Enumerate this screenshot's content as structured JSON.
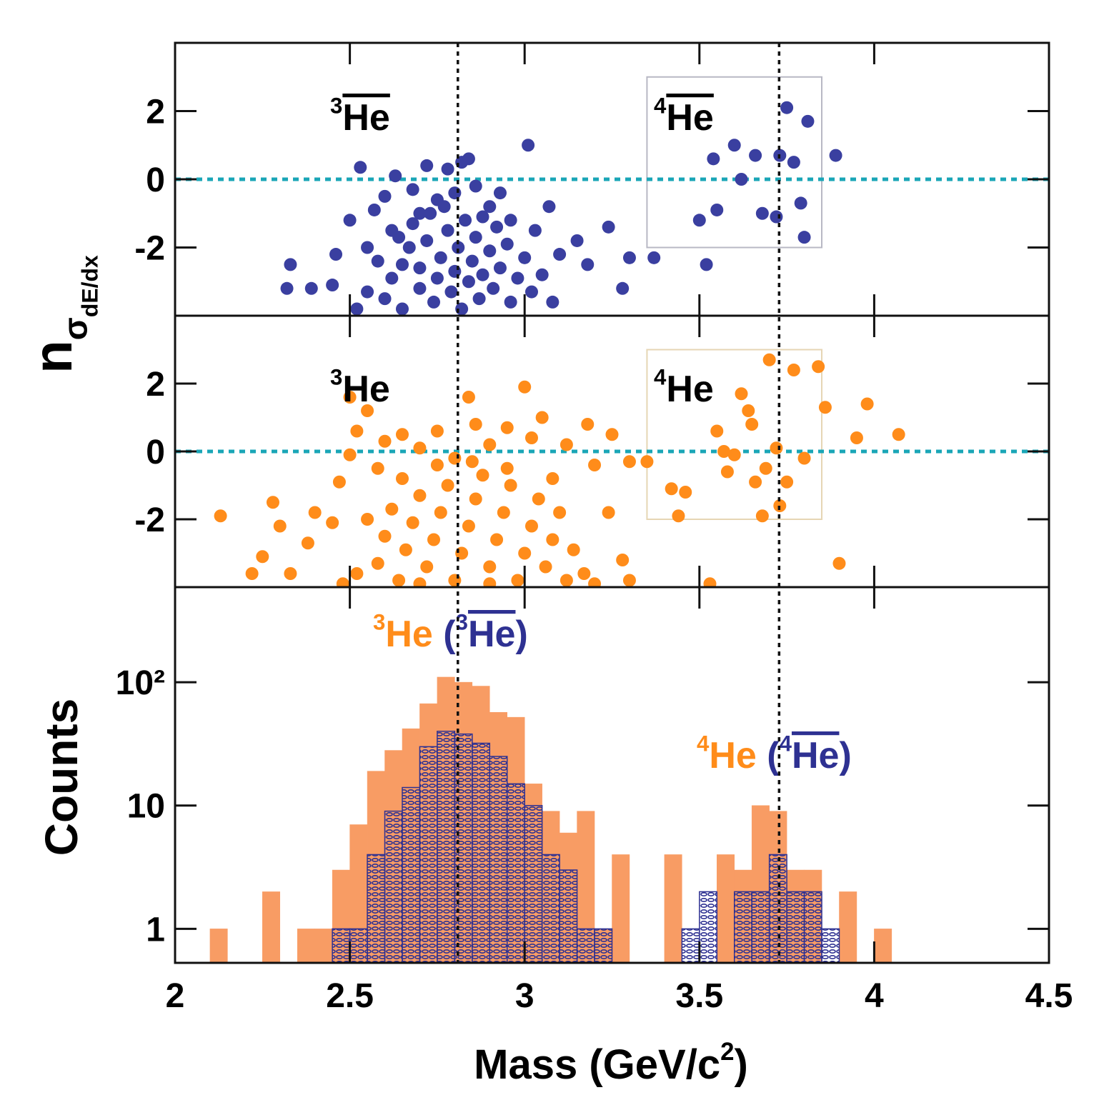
{
  "chart_data": [
    {
      "type": "scatter",
      "color": "#3a3fa0",
      "ylabel": [
        {
          "text": "n"
        },
        {
          "text": "σ",
          "sub": 1
        },
        {
          "text": "dE/dx",
          "sub": 2
        }
      ],
      "xlim": [
        2,
        4.5
      ],
      "ylim": [
        -4,
        4
      ],
      "yticks": [
        -2,
        0,
        2
      ],
      "hline": 0,
      "vlines": [
        2.809,
        3.728
      ],
      "box": {
        "x": [
          3.35,
          3.85
        ],
        "y": [
          -2,
          3
        ],
        "color": "#b8b8c4"
      },
      "annotations": [
        {
          "parts": [
            {
              "text": "3",
              "sup": true
            },
            {
              "text": "He",
              "overline": true
            }
          ]
        },
        {
          "parts": [
            {
              "text": "4",
              "sup": true
            },
            {
              "text": "He",
              "overline": true
            }
          ]
        }
      ],
      "x": [
        2.32,
        2.33,
        2.39,
        2.45,
        2.46,
        2.5,
        2.53,
        2.55,
        2.57,
        2.6,
        2.62,
        2.63,
        2.65,
        2.68,
        2.7,
        2.72,
        2.75,
        2.78,
        2.8,
        2.82,
        2.84,
        2.86,
        2.9,
        2.93,
        2.96,
        3.01,
        3.03,
        3.07,
        3.1,
        3.15,
        3.18,
        3.24,
        3.28,
        3.3,
        3.37,
        3.52,
        3.54,
        3.5,
        3.55,
        3.6,
        3.62,
        3.68,
        3.66,
        3.72,
        3.73,
        3.75,
        3.77,
        3.79,
        3.81,
        3.8,
        3.89,
        2.6,
        2.62,
        2.65,
        2.67,
        2.7,
        2.7,
        2.72,
        2.74,
        2.75,
        2.76,
        2.78,
        2.79,
        2.8,
        2.81,
        2.82,
        2.83,
        2.84,
        2.85,
        2.86,
        2.87,
        2.88,
        2.9,
        2.91,
        2.93,
        2.95,
        2.96,
        2.98,
        3,
        3.02,
        2.58,
        2.55,
        2.52,
        2.68,
        2.73,
        2.77,
        2.88,
        2.92,
        3.05,
        3.08,
        2.64
      ],
      "values": [
        -3.2,
        -2.5,
        -3.2,
        -3.1,
        -2.2,
        -1.2,
        0.35,
        -2,
        -0.9,
        -0.5,
        -1.5,
        0.1,
        -2.5,
        -0.3,
        -1,
        0.4,
        -0.6,
        0.3,
        -0.4,
        0.5,
        0.6,
        -0.2,
        -0.8,
        -0.4,
        -1.2,
        1,
        -1.5,
        -0.8,
        -2.2,
        -1.8,
        -2.5,
        -1.4,
        -3.2,
        -2.3,
        -2.3,
        -2.5,
        0.6,
        -1.2,
        -0.9,
        1,
        0,
        -1,
        0.7,
        -1.1,
        0.7,
        2.1,
        0.5,
        -0.7,
        1.7,
        -1.7,
        0.7,
        -3.5,
        -2.9,
        -3.8,
        -2,
        -3.2,
        -2.6,
        -1.8,
        -3.6,
        -2.9,
        -2.3,
        -1.5,
        -3.3,
        -2.7,
        -2,
        -3.8,
        -1.2,
        -3,
        -2.4,
        -1.7,
        -3.5,
        -2.8,
        -2.1,
        -3.2,
        -2.6,
        -1.9,
        -3.6,
        -2.9,
        -2.3,
        -3.3,
        -2.4,
        -3.3,
        -3.8,
        -1.3,
        -1,
        -0.8,
        -1.1,
        -1.4,
        -2.8,
        -3.6,
        -1.7
      ]
    },
    {
      "type": "scatter",
      "color": "#ff8c1a",
      "xlim": [
        2,
        4.5
      ],
      "ylim": [
        -4,
        4
      ],
      "yticks": [
        -2,
        0,
        2
      ],
      "hline": 0,
      "box": {
        "x": [
          3.35,
          3.85
        ],
        "y": [
          -2,
          3
        ],
        "color": "#e6d6b4"
      },
      "annotations": [
        {
          "parts": [
            {
              "text": "3",
              "sup": true
            },
            {
              "text": "He"
            }
          ]
        },
        {
          "parts": [
            {
              "text": "4",
              "sup": true
            },
            {
              "text": "He"
            }
          ]
        }
      ],
      "x": [
        2.13,
        2.22,
        2.25,
        2.28,
        2.3,
        2.33,
        2.38,
        2.4,
        2.45,
        2.47,
        2.5,
        2.5,
        2.55,
        2.52,
        2.58,
        2.6,
        2.65,
        2.7,
        2.75,
        2.8,
        2.84,
        2.86,
        2.9,
        2.95,
        3,
        3.02,
        3.05,
        3.08,
        3.12,
        3.18,
        3.2,
        3.24,
        3.25,
        3.28,
        3.3,
        3.3,
        3.35,
        3.42,
        3.44,
        3.46,
        3.53,
        3.55,
        3.57,
        3.58,
        3.6,
        3.62,
        3.64,
        3.65,
        3.66,
        3.68,
        3.69,
        3.7,
        3.72,
        3.73,
        3.75,
        3.77,
        3.8,
        3.84,
        3.86,
        3.9,
        3.95,
        3.98,
        4.07,
        2.58,
        2.6,
        2.62,
        2.64,
        2.66,
        2.68,
        2.7,
        2.72,
        2.74,
        2.76,
        2.78,
        2.8,
        2.82,
        2.84,
        2.86,
        2.88,
        2.9,
        2.92,
        2.94,
        2.96,
        2.98,
        3,
        3.02,
        3.04,
        3.06,
        3.08,
        3.1,
        3.12,
        2.55,
        2.52,
        2.65,
        2.75,
        2.85,
        2.95,
        3.14,
        3.17,
        2.48,
        2.7,
        2.9,
        3.2
      ],
      "values": [
        -1.9,
        -3.6,
        -3.1,
        -1.5,
        -2.2,
        -3.6,
        -2.7,
        -1.8,
        -2.1,
        -0.9,
        -0.1,
        1.6,
        1.2,
        0.6,
        -0.5,
        0.3,
        0.5,
        0.1,
        0.6,
        -0.2,
        1.6,
        0.8,
        0.2,
        0.7,
        1.9,
        0.4,
        1,
        -0.8,
        0.2,
        0.8,
        -0.4,
        -1.8,
        0.5,
        -3.2,
        -0.3,
        -3.8,
        -0.3,
        -1.1,
        -1.9,
        -1.2,
        -3.9,
        0.6,
        0,
        -0.6,
        -0.1,
        1.7,
        1.2,
        0.8,
        -0.9,
        -1.9,
        -0.5,
        2.7,
        0.1,
        -1.6,
        -0.9,
        2.4,
        -0.2,
        2.5,
        1.3,
        -3.3,
        0.4,
        1.4,
        0.5,
        -3.3,
        -2.5,
        -1.7,
        -3.8,
        -2.9,
        -2.1,
        -1.3,
        -3.4,
        -2.6,
        -1.8,
        -1,
        -3.8,
        -3,
        -2.2,
        -1.4,
        -0.7,
        -3.4,
        -2.6,
        -1.8,
        -1,
        -3.8,
        -3,
        -2.2,
        -1.4,
        -3.4,
        -2.6,
        -1.8,
        -3.8,
        -2,
        -3.6,
        -0.8,
        -0.4,
        -0.3,
        -0.5,
        -2.9,
        -3.6,
        -3.9,
        -3.9,
        -3.9,
        -3.9
      ]
    },
    {
      "type": "histogram",
      "ylabel": "Counts",
      "xlabel": [
        {
          "text": "Mass (GeV/c"
        },
        {
          "text": "2",
          "sup": true
        },
        {
          "text": ")"
        }
      ],
      "xlim": [
        2,
        4.5
      ],
      "xticks": [
        2,
        2.5,
        3,
        3.5,
        4,
        4.5
      ],
      "ylim": [
        0.53,
        590
      ],
      "log_y": true,
      "yticks": [
        1,
        10,
        {
          "value": 100,
          "label": "10²"
        }
      ],
      "annotations": [
        {
          "parts": [
            {
              "text": "3",
              "sup": true,
              "color": "#ff8c1a"
            },
            {
              "text": "He",
              "color": "#ff8c1a"
            },
            {
              "text": " (",
              "color": "#2e3192"
            },
            {
              "text": "3",
              "sup": true,
              "color": "#2e3192"
            },
            {
              "text": "He",
              "overline": true,
              "color": "#2e3192"
            },
            {
              "text": ")",
              "color": "#2e3192"
            }
          ]
        },
        {
          "parts": [
            {
              "text": "4",
              "sup": true,
              "color": "#ff8c1a"
            },
            {
              "text": "He",
              "color": "#ff8c1a"
            },
            {
              "text": " (",
              "color": "#2e3192"
            },
            {
              "text": "4",
              "sup": true,
              "color": "#2e3192"
            },
            {
              "text": "He",
              "overline": true,
              "color": "#2e3192"
            },
            {
              "text": ")",
              "color": "#2e3192"
            }
          ]
        }
      ],
      "bins": [
        2,
        2.05,
        2.1,
        2.15,
        2.2,
        2.25,
        2.3,
        2.35,
        2.4,
        2.45,
        2.5,
        2.55,
        2.6,
        2.65,
        2.7,
        2.75,
        2.8,
        2.85,
        2.9,
        2.95,
        3,
        3.05,
        3.1,
        3.15,
        3.2,
        3.25,
        3.3,
        3.35,
        3.4,
        3.45,
        3.5,
        3.55,
        3.6,
        3.65,
        3.7,
        3.75,
        3.8,
        3.85,
        3.9,
        3.95,
        4,
        4.05,
        4.1,
        4.15,
        4.2,
        4.25,
        4.3,
        4.35,
        4.4,
        4.45,
        4.5
      ],
      "series": [
        {
          "color": "#f89c64",
          "values": [
            0,
            0,
            1,
            0,
            0,
            2,
            0,
            1,
            1,
            3,
            7,
            19,
            28,
            42,
            67,
            110,
            100,
            93,
            57,
            52,
            15,
            9,
            6,
            9,
            1,
            4,
            0,
            0,
            4,
            0,
            0,
            4,
            3,
            10,
            9,
            3,
            3,
            0,
            2,
            0,
            1,
            0,
            0,
            0,
            0,
            0,
            0,
            0,
            0,
            0
          ]
        },
        {
          "color": "#2e3192",
          "hatch": true,
          "values": [
            0,
            0,
            0,
            0,
            0,
            0,
            0,
            0,
            0,
            1,
            1,
            4,
            9,
            14,
            30,
            40,
            38,
            32,
            25,
            15,
            10,
            4,
            3,
            1,
            1,
            0,
            0,
            0,
            0,
            1,
            2,
            0,
            2,
            2,
            4,
            2,
            2,
            1,
            0,
            0,
            0,
            0,
            0,
            0,
            0,
            0,
            0,
            0,
            0,
            0
          ]
        }
      ]
    }
  ]
}
